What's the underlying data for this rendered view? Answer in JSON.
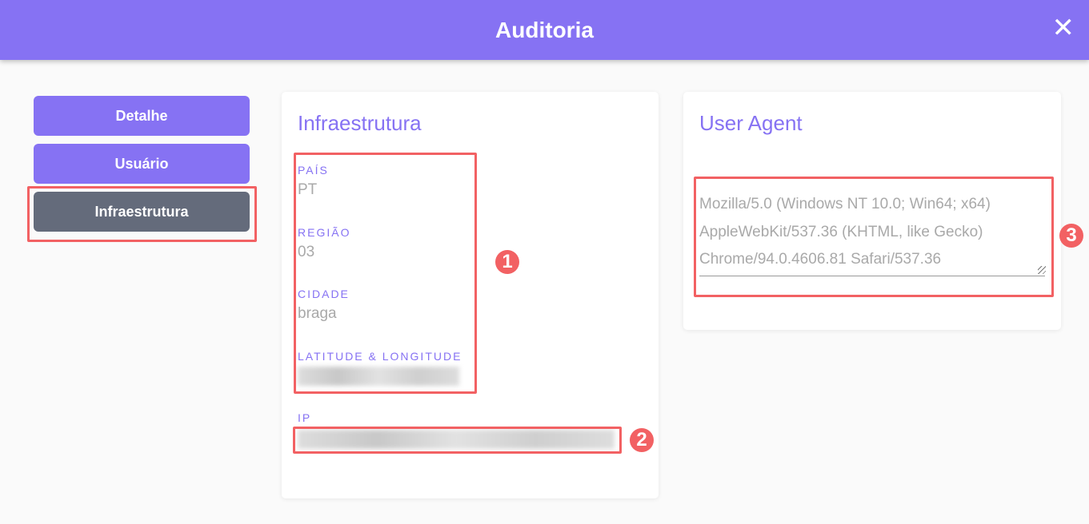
{
  "header": {
    "title": "Auditoria",
    "close_icon": "close-icon"
  },
  "sidebar": {
    "items": [
      {
        "label": "Detalhe"
      },
      {
        "label": "Usuário"
      },
      {
        "label": "Infraestrutura",
        "active": true
      }
    ]
  },
  "infra": {
    "title": "Infraestrutura",
    "fields": [
      {
        "label": "PAÍS",
        "value": "PT"
      },
      {
        "label": "REGIÃO",
        "value": "03"
      },
      {
        "label": "CIDADE",
        "value": "braga"
      },
      {
        "label": "LATITUDE & LONGITUDE"
      },
      {
        "label": "IP"
      }
    ]
  },
  "user_agent": {
    "title": "User Agent",
    "value": "Mozilla/5.0 (Windows NT 10.0; Win64; x64)\nAppleWebKit/537.36 (KHTML, like Gecko)\nChrome/94.0.4606.81 Safari/537.36"
  },
  "annotations": [
    "1",
    "2",
    "3"
  ],
  "colors": {
    "accent": "#8672f3",
    "active": "#646b7b",
    "highlight": "#f26163"
  }
}
